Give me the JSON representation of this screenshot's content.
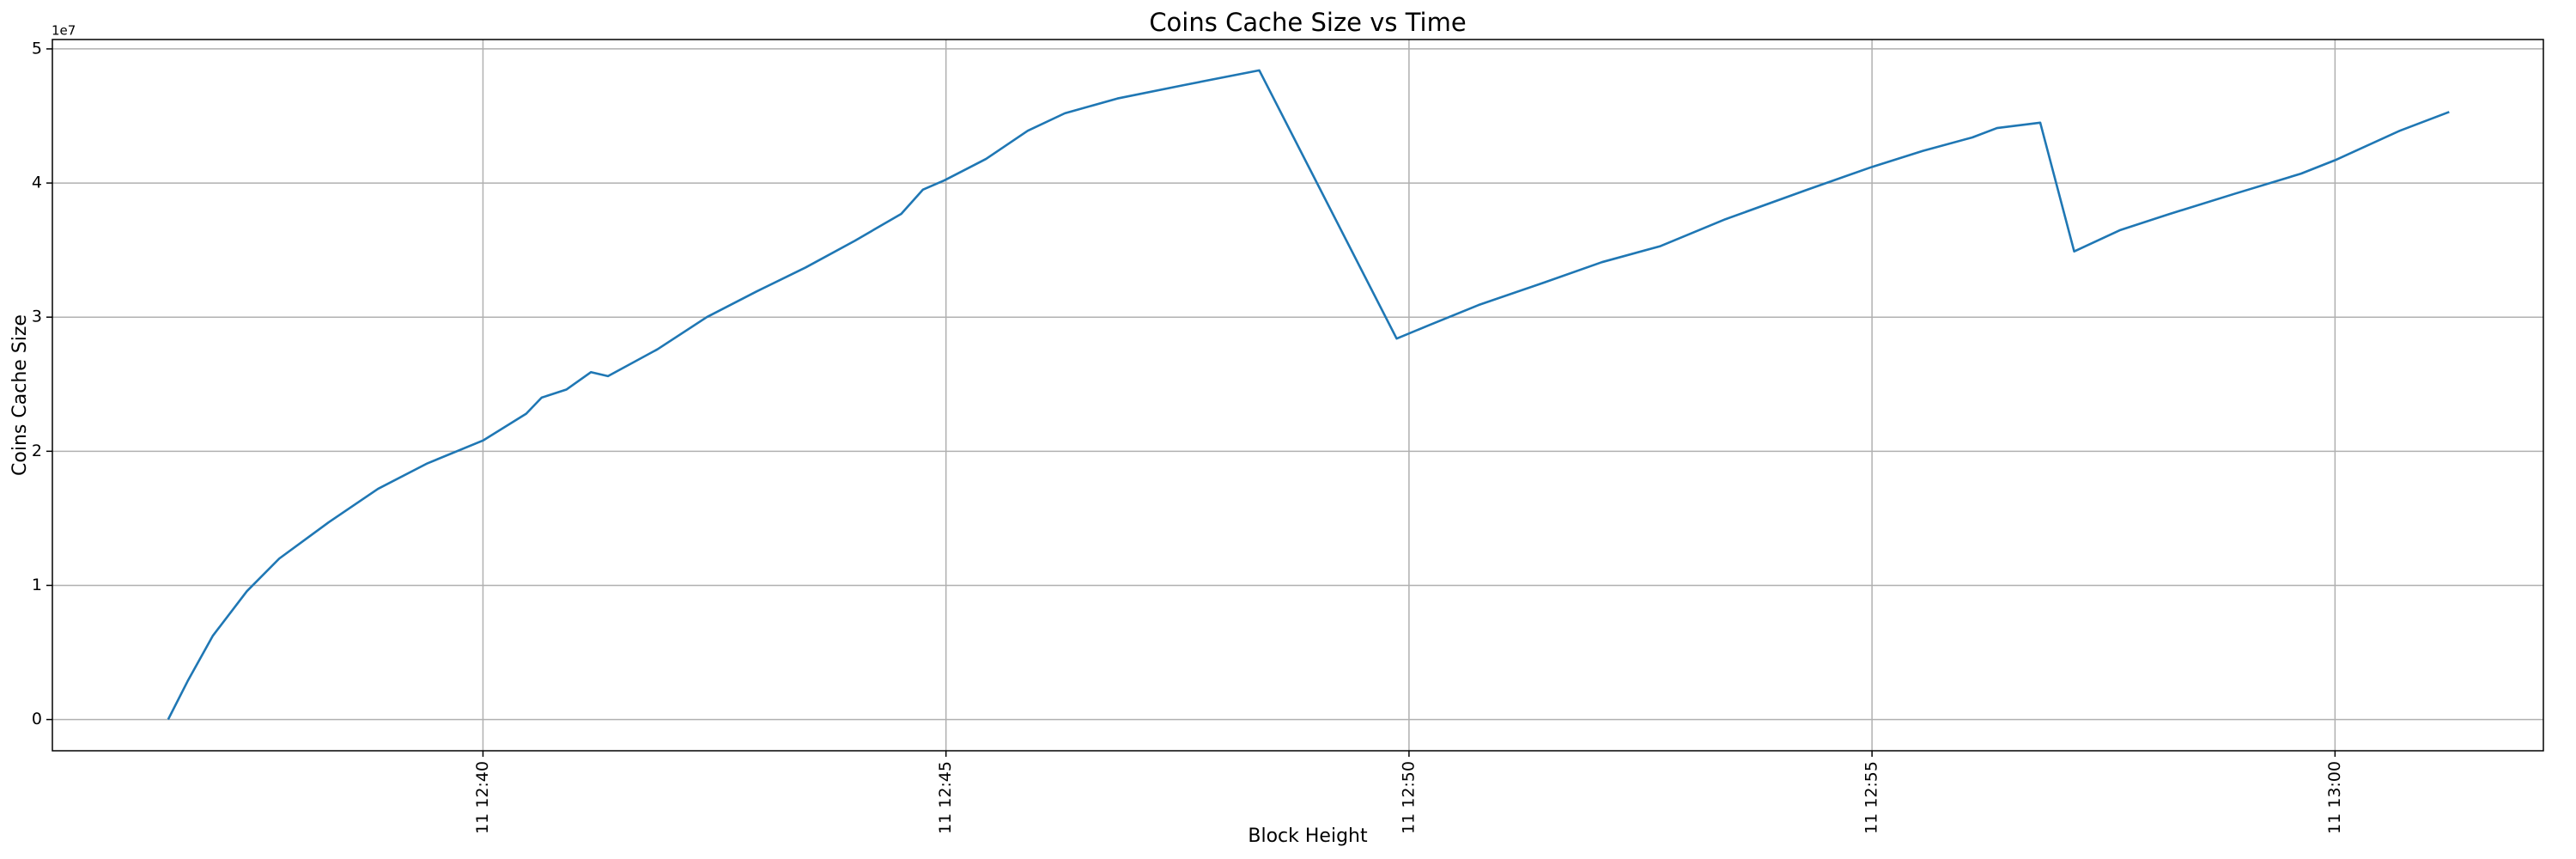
{
  "chart_data": {
    "type": "line",
    "title": "Coins Cache Size vs Time",
    "xlabel": "Block Height",
    "ylabel": "Coins Cache Size",
    "y_offset_label": "1e7",
    "color": "#1f77b4",
    "grid": true,
    "x": [
      "11 12:36:36",
      "11 12:36:49",
      "11 12:37:05",
      "11 12:37:27",
      "11 12:37:48",
      "11 12:38:20",
      "11 12:38:52",
      "11 12:39:24",
      "11 12:40:00",
      "11 12:40:28",
      "11 12:40:38",
      "11 12:40:54",
      "11 12:41:10",
      "11 12:41:21",
      "11 12:41:53",
      "11 12:42:25",
      "11 12:42:57",
      "11 12:43:29",
      "11 12:44:01",
      "11 12:44:31",
      "11 12:44:45",
      "11 12:44:59",
      "11 12:45:26",
      "11 12:45:53",
      "11 12:46:17",
      "11 12:46:51",
      "11 12:47:34",
      "11 12:48:23",
      "11 12:49:52",
      "11 12:50:13",
      "11 12:50:45",
      "11 12:51:28",
      "11 12:52:05",
      "11 12:52:43",
      "11 12:53:25",
      "11 12:54:18",
      "11 12:55:00",
      "11 12:55:33",
      "11 12:56:05",
      "11 12:56:21",
      "11 12:56:49",
      "11 12:57:11",
      "11 12:57:41",
      "11 12:58:13",
      "11 12:58:55",
      "11 12:59:38",
      "11 13:00:00",
      "11 13:00:42",
      "11 13:01:14"
    ],
    "values": [
      0,
      2940000,
      6250000,
      9560000,
      12000000,
      14700000,
      17200000,
      19100000,
      20800000,
      22800000,
      24000000,
      24600000,
      25900000,
      25600000,
      27600000,
      30000000,
      31900000,
      33700000,
      35700000,
      37700000,
      39500000,
      40200000,
      41800000,
      43900000,
      45200000,
      46300000,
      47300000,
      48400000,
      28400000,
      29400000,
      30900000,
      32600000,
      34100000,
      35300000,
      37300000,
      39500000,
      41200000,
      42400000,
      43400000,
      44100000,
      44500000,
      34900000,
      36500000,
      37700000,
      39200000,
      40700000,
      41700000,
      43900000,
      45300000
    ],
    "xlim": [
      "11 12:35:21",
      "11 13:02:15"
    ],
    "xticks": [
      "11 12:40",
      "11 12:45",
      "11 12:50",
      "11 12:55",
      "11 13:00"
    ],
    "ylim": [
      -2330000,
      50700000
    ],
    "yticks": [
      0,
      {
        "value": 10000000,
        "label": "1"
      },
      {
        "value": 20000000,
        "label": "2"
      },
      {
        "value": 30000000,
        "label": "3"
      },
      {
        "value": 40000000,
        "label": "4"
      },
      {
        "value": 50000000,
        "label": "5"
      }
    ]
  }
}
